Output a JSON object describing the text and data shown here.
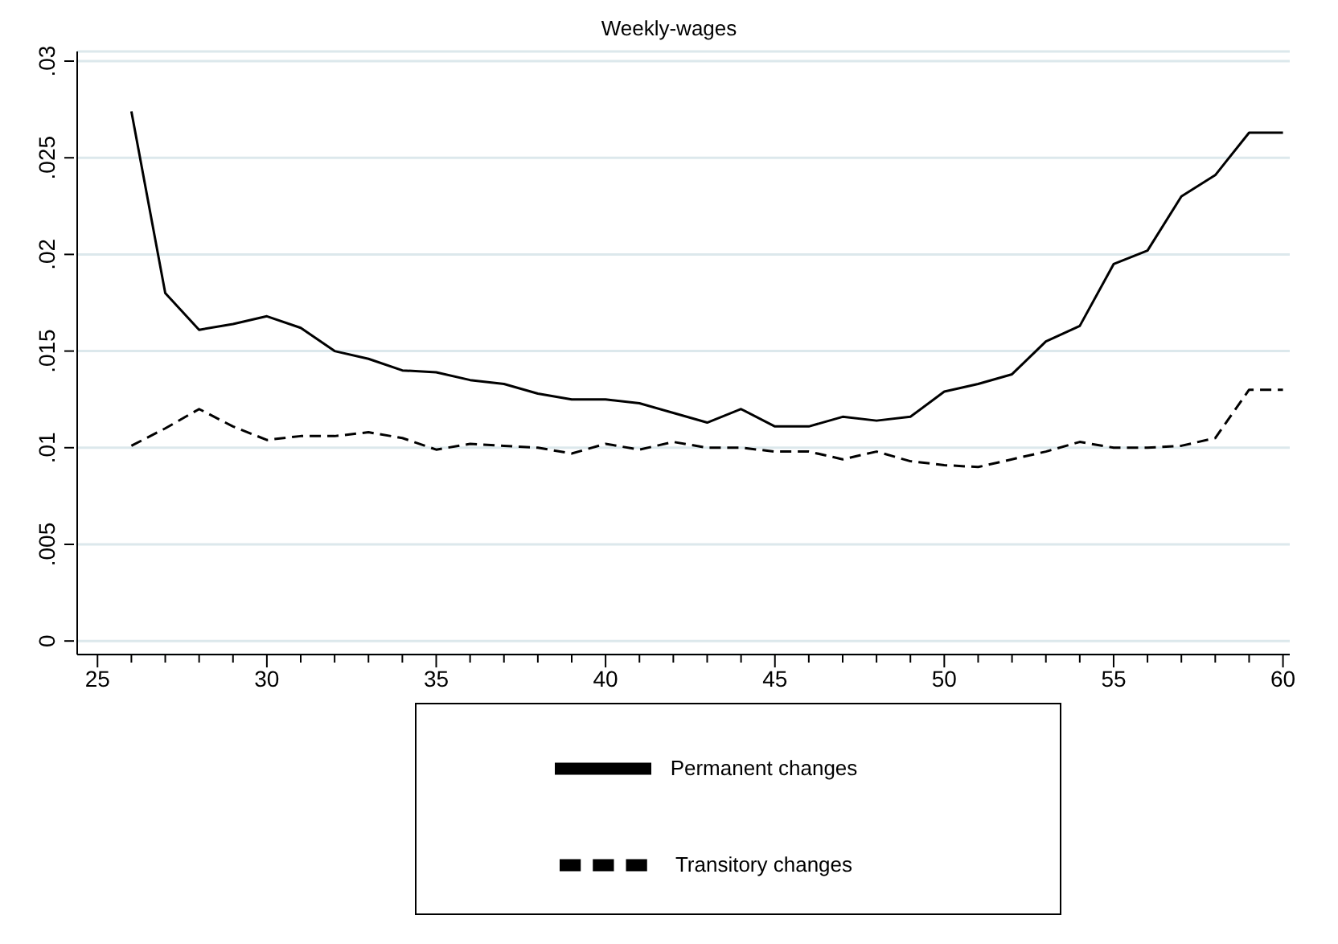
{
  "chart_data": {
    "type": "line",
    "title": "Weekly-wages",
    "x": [
      26,
      27,
      28,
      29,
      30,
      31,
      32,
      33,
      34,
      35,
      36,
      37,
      38,
      39,
      40,
      41,
      42,
      43,
      44,
      45,
      46,
      47,
      48,
      49,
      50,
      51,
      52,
      53,
      54,
      55,
      56,
      57,
      58,
      59,
      60
    ],
    "series": [
      {
        "name": "Permanent changes",
        "color": "#000000",
        "line_style": "solid",
        "values": [
          0.0274,
          0.018,
          0.0161,
          0.0164,
          0.0168,
          0.0162,
          0.015,
          0.0146,
          0.014,
          0.0139,
          0.0135,
          0.0133,
          0.0128,
          0.0125,
          0.0125,
          0.0123,
          0.0118,
          0.0113,
          0.012,
          0.0111,
          0.0111,
          0.0116,
          0.0114,
          0.0116,
          0.0129,
          0.0133,
          0.0138,
          0.0155,
          0.0163,
          0.0195,
          0.0202,
          0.023,
          0.0241,
          0.0263,
          0.0263
        ]
      },
      {
        "name": "Transitory changes",
        "color": "#000000",
        "line_style": "dashed",
        "values": [
          0.0101,
          0.011,
          0.012,
          0.0111,
          0.0104,
          0.0106,
          0.0106,
          0.0108,
          0.0105,
          0.0099,
          0.0102,
          0.0101,
          0.01,
          0.0097,
          0.0102,
          0.0099,
          0.0103,
          0.01,
          0.01,
          0.0098,
          0.0098,
          0.0094,
          0.0098,
          0.0093,
          0.0091,
          0.009,
          0.0094,
          0.0098,
          0.0103,
          0.01,
          0.01,
          0.0101,
          0.0105,
          0.013,
          0.013
        ]
      }
    ],
    "xlim": [
      24.4,
      60.2
    ],
    "xticks": [
      25,
      {
        "value": 26,
        "label": null
      },
      {
        "value": 27,
        "label": null
      },
      {
        "value": 28,
        "label": null
      },
      {
        "value": 29,
        "label": null
      },
      30,
      {
        "value": 31,
        "label": null
      },
      {
        "value": 32,
        "label": null
      },
      {
        "value": 33,
        "label": null
      },
      {
        "value": 34,
        "label": null
      },
      35,
      {
        "value": 36,
        "label": null
      },
      {
        "value": 37,
        "label": null
      },
      {
        "value": 38,
        "label": null
      },
      {
        "value": 39,
        "label": null
      },
      40,
      {
        "value": 41,
        "label": null
      },
      {
        "value": 42,
        "label": null
      },
      {
        "value": 43,
        "label": null
      },
      {
        "value": 44,
        "label": null
      },
      45,
      {
        "value": 46,
        "label": null
      },
      {
        "value": 47,
        "label": null
      },
      {
        "value": 48,
        "label": null
      },
      {
        "value": 49,
        "label": null
      },
      50,
      {
        "value": 51,
        "label": null
      },
      {
        "value": 52,
        "label": null
      },
      {
        "value": 53,
        "label": null
      },
      {
        "value": 54,
        "label": null
      },
      55,
      {
        "value": 56,
        "label": null
      },
      {
        "value": 57,
        "label": null
      },
      {
        "value": 58,
        "label": null
      },
      {
        "value": 59,
        "label": null
      },
      60
    ],
    "ylim": [
      -0.0007,
      0.0305
    ],
    "yticks": [
      0,
      {
        "value": 0.005,
        "label": ".005"
      },
      {
        "value": 0.01,
        "label": ".01"
      },
      {
        "value": 0.015,
        "label": ".015"
      },
      {
        "value": 0.02,
        "label": ".02"
      },
      {
        "value": 0.025,
        "label": ".025"
      },
      {
        "value": 0.03,
        "label": ".03"
      }
    ],
    "grid": "y",
    "legend": "bottom",
    "marker": "none"
  }
}
